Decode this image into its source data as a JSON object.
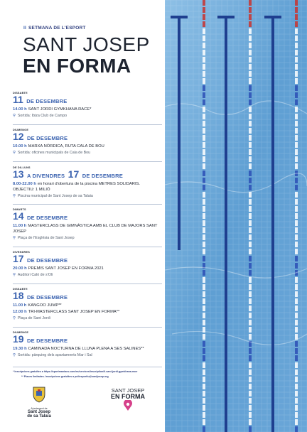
{
  "header": {
    "edition": "II",
    "subtitle": "SETMANA DE L'ESPORT",
    "title_line1": "SANT JOSEP",
    "title_line2": "EN FORMA"
  },
  "events": [
    {
      "day": "DISSABTE",
      "date_num": "11",
      "date_rest": "DE DESEMBRE",
      "lines": [
        {
          "time": "14.00 h",
          "text": "SANT JORDI GYMKHANA RACE*"
        }
      ],
      "location": "Sortida: Ibiza Club de Campo"
    },
    {
      "day": "DIUMENGE",
      "date_num": "12",
      "date_rest": "DE DESEMBRE",
      "lines": [
        {
          "time": "10.00 h",
          "text": "MARXA NÒRDICA, RUTA CALA DE BOU"
        }
      ],
      "location": "Sortida: oficines municipals de Cala de Bou"
    },
    {
      "day": "DE DILLUNS",
      "date_num": "13",
      "date_rest": "A DIVENDRES",
      "date_num2": "17",
      "date_rest2": "DE DESEMBRE",
      "lines": [
        {
          "time": "8.00-22.00 h",
          "text": "en horari d'obertura de la piscina METRES SOLIDARIS. OBJECTIU: 1 MILIÓ"
        }
      ],
      "location": "Piscina municipal de Sant Josep de sa Talaia"
    },
    {
      "day": "DIMARTS",
      "date_num": "14",
      "date_rest": "DE DESEMBRE",
      "lines": [
        {
          "time": "11.00 h",
          "text": "MASTERCLASS DE GIMNÀSTICA AMB EL CLUB DE MAJORS SANT JOSEP"
        }
      ],
      "location": "Plaça de l'Església de Sant Josep"
    },
    {
      "day": "DIVENDRES",
      "date_num": "17",
      "date_rest": "DE DESEMBRE",
      "lines": [
        {
          "time": "20.00 h",
          "text": "PREMIS SANT JOSEP EN FORMA 2021"
        }
      ],
      "location": "Auditori Caló de s'Oli"
    },
    {
      "day": "DISSABTE",
      "date_num": "18",
      "date_rest": "DE DESEMBRE",
      "lines": [
        {
          "time": "11.00 h",
          "text": "KANGOO JUMP**"
        },
        {
          "time": "12.00 h",
          "text": "TRI-MASTERCLASS SANT JOSEP EN FORMA**"
        }
      ],
      "location": "Plaça de Sant Jordi"
    },
    {
      "day": "DIUMENGE",
      "date_num": "19",
      "date_rest": "DE DESEMBRE",
      "lines": [
        {
          "time": "19.30 h",
          "text": "CAMINADA NOCTURNA DE LLUNA PLENA A SES SALINES**"
        }
      ],
      "location": "Sortida: pàrquing dels apartaments Mar i Sal"
    }
  ],
  "notes": [
    "* Inscripcions gratuïtes a https://sportmaniacs.com/es/services/inscription/ii-sant-jordi-gymkhana-race",
    "** Places limitades. Inscripcions gratuïtes a poliesportiu@santjosep.org"
  ],
  "footer": {
    "ajuntament_label": "Ajuntament de",
    "ajuntament_name1": "Sant Josep",
    "ajuntament_name2": "de sa Talaia",
    "brand_line1": "SANT JOSEP",
    "brand_line2": "EN FORMA"
  },
  "colors": {
    "accent": "#3b63b0",
    "text": "#1e2430",
    "pool": "#6fa8d6",
    "lane_red": "#c8332f",
    "lane_blue": "#2c4fb5"
  }
}
